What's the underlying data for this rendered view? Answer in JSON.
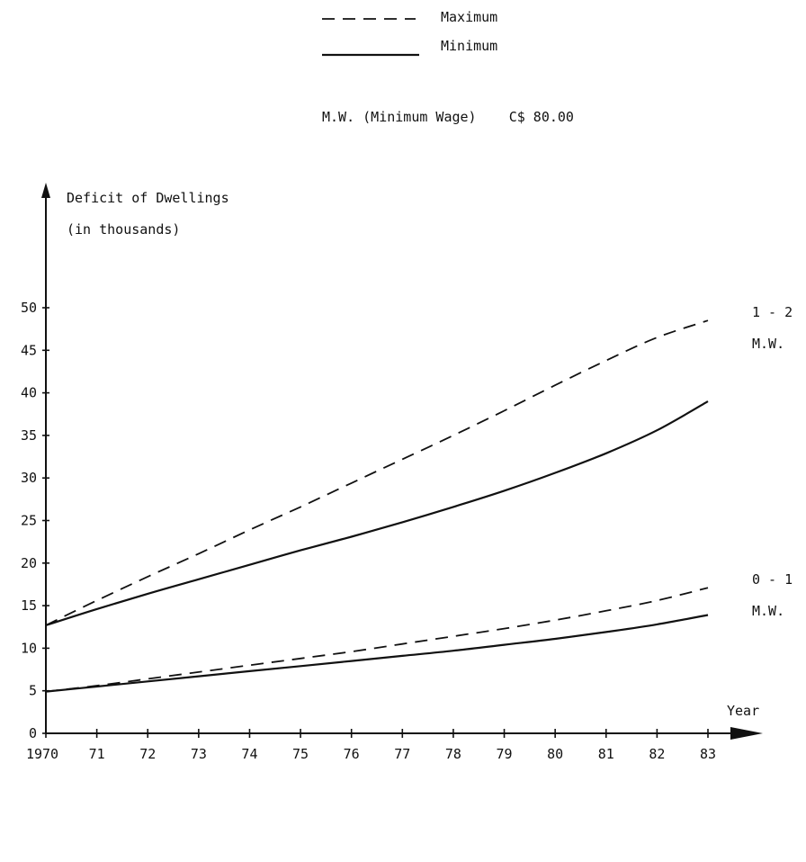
{
  "legend": {
    "items": [
      {
        "label": "Maximum",
        "style": "dashed"
      },
      {
        "label": "Minimum",
        "style": "solid"
      }
    ],
    "note": "M.W. (Minimum Wage)    C$ 80.00"
  },
  "chart_data": {
    "type": "line",
    "ylabel_line1": "Deficit of Dwellings",
    "ylabel_line2": "(in thousands)",
    "xlabel": "Year",
    "x": [
      1970,
      1971,
      1972,
      1973,
      1974,
      1975,
      1976,
      1977,
      1978,
      1979,
      1980,
      1981,
      1982,
      1983
    ],
    "x_tick_labels": [
      "1970",
      "71",
      "72",
      "73",
      "74",
      "75",
      "76",
      "77",
      "78",
      "79",
      "80",
      "81",
      "82",
      "83"
    ],
    "y_ticks": [
      0,
      5,
      10,
      15,
      20,
      25,
      30,
      35,
      40,
      45,
      50
    ],
    "xlim": [
      1970,
      1983
    ],
    "ylim": [
      0,
      50
    ],
    "grid": false,
    "series": [
      {
        "name": "Maximum",
        "group": "1 - 2 M.W.",
        "style": "dashed",
        "values": [
          12.7,
          15.6,
          18.4,
          21.1,
          23.9,
          26.6,
          29.4,
          32.2,
          35.0,
          37.9,
          40.9,
          43.8,
          46.5,
          48.5
        ]
      },
      {
        "name": "Minimum",
        "group": "1 - 2 M.W.",
        "style": "solid",
        "values": [
          12.7,
          14.6,
          16.4,
          18.1,
          19.8,
          21.5,
          23.1,
          24.8,
          26.6,
          28.5,
          30.6,
          32.9,
          35.6,
          39.0
        ]
      },
      {
        "name": "Maximum",
        "group": "0 - 1 M.W.",
        "style": "dashed",
        "values": [
          4.9,
          5.6,
          6.4,
          7.2,
          8.0,
          8.8,
          9.6,
          10.5,
          11.4,
          12.3,
          13.3,
          14.4,
          15.6,
          17.1
        ]
      },
      {
        "name": "Minimum",
        "group": "0 - 1 M.W.",
        "style": "solid",
        "values": [
          4.9,
          5.5,
          6.1,
          6.7,
          7.3,
          7.9,
          8.5,
          9.1,
          9.7,
          10.4,
          11.1,
          11.9,
          12.8,
          13.9
        ]
      }
    ],
    "group_labels": [
      {
        "line1": "1 - 2",
        "line2": "M.W.",
        "attach_value": 48.5
      },
      {
        "line1": "0 - 1",
        "line2": "M.W.",
        "attach_value": 17.1
      }
    ]
  }
}
